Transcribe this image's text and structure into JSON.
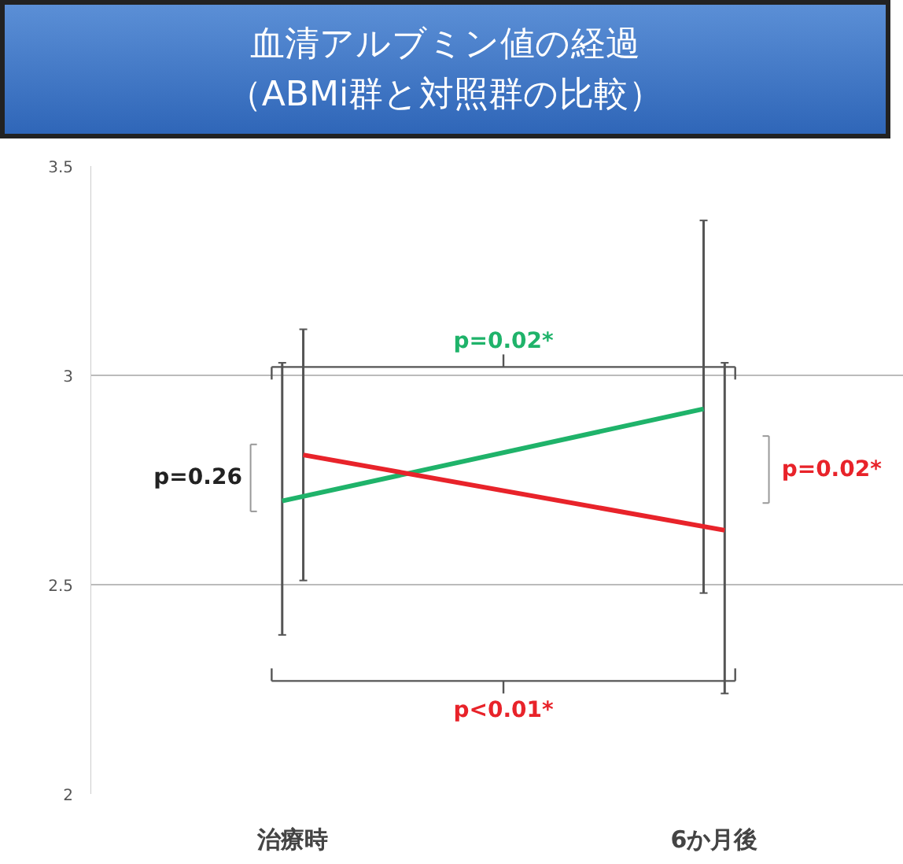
{
  "chart_data": {
    "type": "line",
    "title": "血清アルブミン値の経過",
    "subtitle": "（ABMi群と対照群の比較）",
    "categories": [
      "治療時",
      "6か月後"
    ],
    "series": [
      {
        "color": "#1fb36a",
        "values": [
          2.7,
          2.92
        ],
        "errors": [
          [
            2.38,
            3.03
          ],
          [
            2.48,
            3.37
          ]
        ]
      },
      {
        "color": "#e8232a",
        "values": [
          2.81,
          2.63
        ],
        "errors": [
          [
            2.51,
            3.11
          ],
          [
            2.24,
            3.03
          ]
        ]
      }
    ],
    "ylim": [
      2,
      3.5
    ],
    "yticks": [
      2,
      2.5,
      3,
      3.5
    ],
    "grid": "y",
    "marker": "none",
    "line_style": "solid",
    "annotations": [
      "p=0.26",
      "p=0.02*",
      "p=0.02*",
      "p<0.01*"
    ]
  }
}
